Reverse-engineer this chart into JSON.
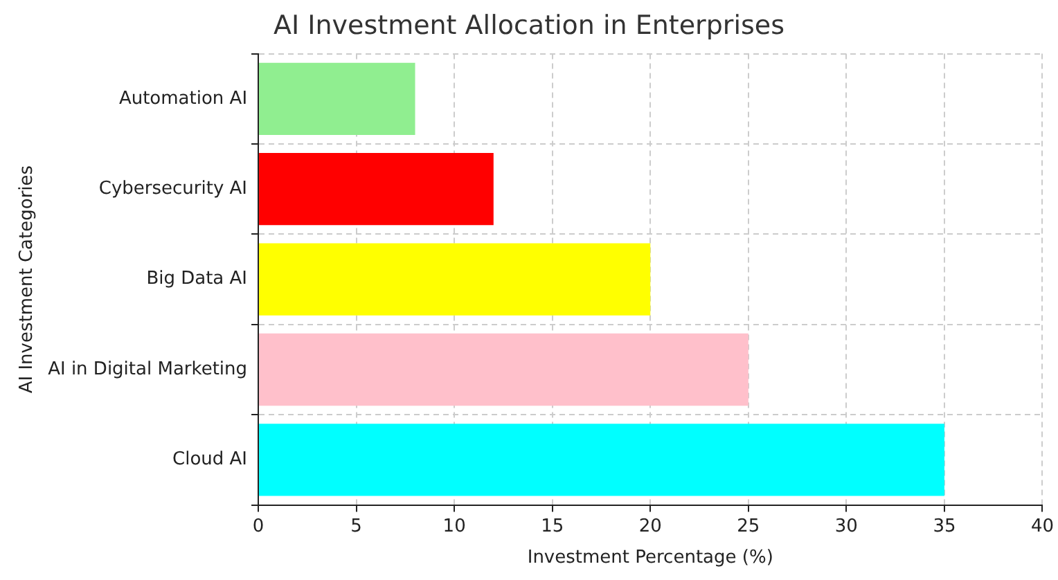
{
  "chart_data": {
    "type": "bar",
    "orientation": "horizontal",
    "title": "AI Investment Allocation in Enterprises",
    "xlabel": "Investment Percentage (%)",
    "ylabel": "AI Investment Categories",
    "categories": [
      "Automation AI",
      "Cybersecurity AI",
      "Big Data AI",
      "AI in Digital Marketing",
      "Cloud AI"
    ],
    "values": [
      8,
      12,
      20,
      25,
      35
    ],
    "colors": [
      "#90ee90",
      "#ff0000",
      "#ffff00",
      "#ffc0cb",
      "#00ffff"
    ],
    "xlim": [
      0,
      40
    ],
    "xticks": [
      0,
      5,
      10,
      15,
      20,
      25,
      30,
      35,
      40
    ],
    "grid": true,
    "legend": false
  }
}
